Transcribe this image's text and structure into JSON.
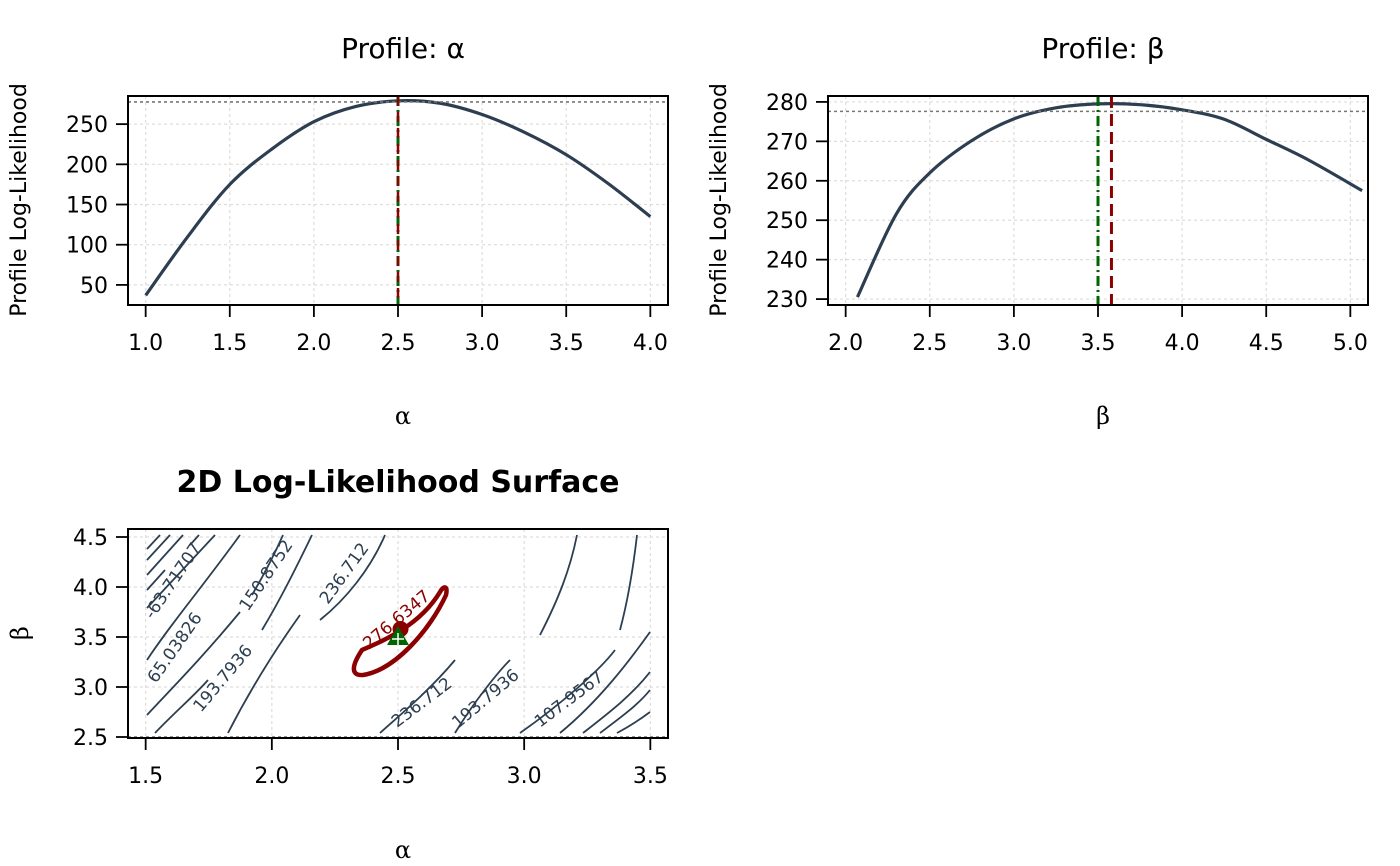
{
  "colors": {
    "curve": "#2c3e50",
    "mle_line": "#8b0000",
    "true_line": "#006400",
    "threshold_line": "#777777",
    "grid": "#dddddd"
  },
  "chart_data": [
    {
      "type": "line",
      "title": "Profile: α",
      "xlabel": "α",
      "ylabel": "Profile Log-Likelihood",
      "xlim": [
        1.0,
        4.0
      ],
      "ylim": [
        25,
        285
      ],
      "xticks": [
        "1.0",
        "1.5",
        "2.0",
        "2.5",
        "3.0",
        "3.5",
        "4.0"
      ],
      "yticks": [
        "50",
        "100",
        "150",
        "200",
        "250"
      ],
      "series": [
        {
          "x": [
            1.0,
            1.25,
            1.5,
            1.75,
            2.0,
            2.25,
            2.5,
            2.75,
            3.0,
            3.25,
            3.5,
            3.75,
            4.0
          ],
          "y": [
            37,
            110,
            175,
            219,
            253,
            272,
            279,
            276,
            262,
            240,
            212,
            176,
            135
          ]
        }
      ],
      "mle_value": 2.5,
      "true_value": 2.5,
      "threshold": 277.6,
      "grid": true
    },
    {
      "type": "line",
      "title": "Profile: β",
      "xlabel": "β",
      "ylabel": "Profile Log-Likelihood",
      "xlim": [
        2.0,
        5.0
      ],
      "ylim": [
        228.5,
        281.5
      ],
      "xticks": [
        "2.0",
        "2.5",
        "3.0",
        "3.5",
        "4.0",
        "4.5",
        "5.0"
      ],
      "yticks": [
        "230",
        "240",
        "250",
        "260",
        "270",
        "280"
      ],
      "series": [
        {
          "x": [
            2.07,
            2.3,
            2.5,
            2.75,
            3.0,
            3.25,
            3.5,
            3.75,
            4.0,
            4.25,
            4.5,
            4.75,
            5.07
          ],
          "y": [
            230.5,
            251.5,
            262,
            270.2,
            275.7,
            278.5,
            279.5,
            279.3,
            278.0,
            275.6,
            270.5,
            265.3,
            257.5
          ]
        }
      ],
      "mle_value": 3.58,
      "true_value": 3.5,
      "threshold": 277.6,
      "grid": true
    },
    {
      "type": "contour",
      "title": "2D Log-Likelihood Surface",
      "xlabel": "α",
      "ylabel": "β",
      "xlim": [
        1.5,
        3.5
      ],
      "ylim": [
        2.5,
        4.5
      ],
      "xticks": [
        "1.5",
        "2.0",
        "2.5",
        "3.0",
        "3.5"
      ],
      "yticks": [
        "2.5",
        "3.0",
        "3.5",
        "4.0",
        "4.5"
      ],
      "contour_labels": [
        "-63.71707",
        "150.8752",
        "236.712",
        "65.03826",
        "193.7936",
        "276.6347",
        "236.712",
        "193.7936",
        "107.9567"
      ],
      "confidence_level": 276.6347,
      "mle_point": [
        2.51,
        3.58
      ],
      "true_point": [
        2.5,
        3.5
      ],
      "grid": true
    }
  ]
}
